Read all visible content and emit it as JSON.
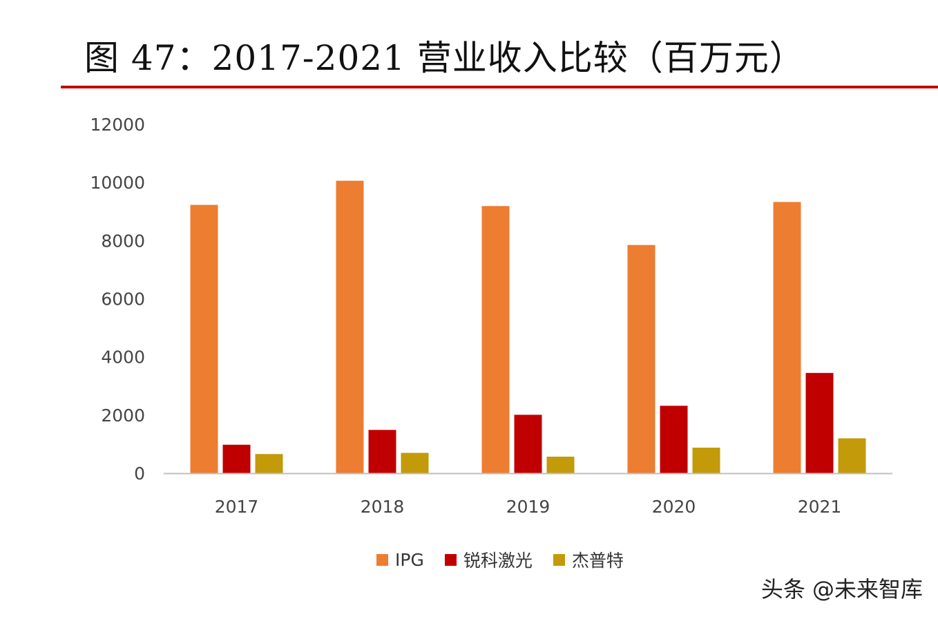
{
  "chart_data": {
    "type": "bar",
    "title": "图 47：2017-2021 营业收入比较（百万元）",
    "categories": [
      "2017",
      "2018",
      "2019",
      "2020",
      "2021"
    ],
    "series": [
      {
        "name": "IPG",
        "color": "#ed7d31",
        "values": [
          9230,
          10060,
          9190,
          7850,
          9330
        ]
      },
      {
        "name": "锐科激光",
        "color": "#c00000",
        "values": [
          980,
          1490,
          2010,
          2320,
          3450
        ]
      },
      {
        "name": "杰普特",
        "color": "#c39a0a",
        "values": [
          660,
          700,
          570,
          880,
          1200
        ]
      }
    ],
    "ylim": [
      0,
      12000
    ],
    "yticks": [
      "0",
      "2000",
      "4000",
      "6000",
      "8000",
      "10000",
      "12000"
    ],
    "grid": false,
    "legend_position": "bottom"
  },
  "watermark": "头条 @未来智库"
}
